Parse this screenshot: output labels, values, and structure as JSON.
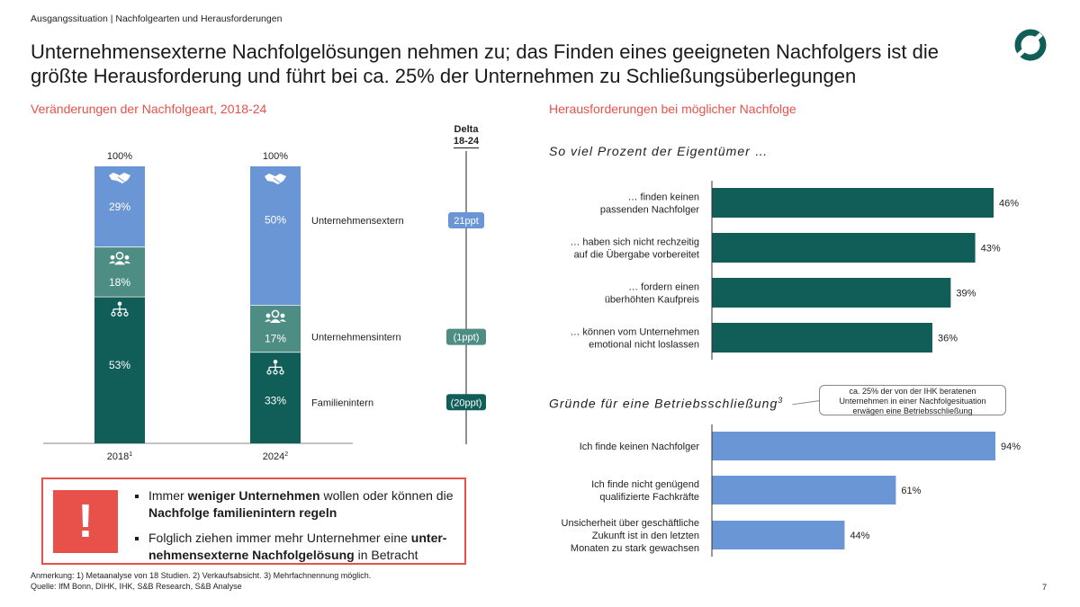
{
  "breadcrumb": "Ausgangssituation | Nachfolgearten und Herausforderungen",
  "title_line1": "Unternehmensexterne Nachfolgelösungen nehmen zu; das Finden eines geeigneten Nachfolgers ist die",
  "title_line2": "größte Herausforderung und führt bei ca. 25% der Unternehmen zu Schließungsüberlegungen",
  "left_section_title": "Veränderungen der Nachfolgeart, 2018-24",
  "right_section_title": "Herausforderungen bei möglicher Nachfolge",
  "delta_header_line1": "Delta",
  "delta_header_line2": "18-24",
  "owners_header": "So viel Prozent der Eigentümer …",
  "closure_header": "Gründe für eine Betriebsschließung",
  "closure_header_sup": "3",
  "callout_line1": "ca. 25% der von der IHK beratenen",
  "callout_line2": "Unternehmen in einer Nachfolgesituation",
  "callout_line3": "erwägen eine Betriebsschließung",
  "warning_symbol": "!",
  "bullet1_parts": [
    "Immer ",
    "weniger Unternehmen",
    " wollen oder können die ",
    "Nachfolge familienintern regeln"
  ],
  "bullet2_parts": [
    "Folglich ziehen immer mehr Unternehmer eine ",
    "unter-nehmensexterne Nachfolgelösung",
    " in Betracht"
  ],
  "note_line1": "Anmerkung: 1) Metaanalyse von 18 Studien. 2) Verkaufsabsicht. 3) Mehrfachnennung möglich.",
  "note_line2": "Quelle: IfM Bonn, DIHK, IHK, S&B Research, S&B Analyse",
  "page_number": "7",
  "colors": {
    "accent_red": "#e8514a",
    "dark_teal": "#115e59",
    "mid_teal": "#4e8d83",
    "light_blue": "#6b96d6"
  },
  "chart_data": [
    {
      "type": "bar",
      "stacked": true,
      "categories": [
        "2018",
        "2024"
      ],
      "category_sups": [
        "1",
        "2"
      ],
      "totals": [
        "100%",
        "100%"
      ],
      "series": [
        {
          "name": "Familienintern",
          "values": [
            53,
            33
          ],
          "color": "#115e59",
          "icon": "org-chart-icon",
          "delta": "(20ppt)"
        },
        {
          "name": "Unternehmensintern",
          "values": [
            18,
            17
          ],
          "color": "#4e8d83",
          "icon": "group-icon",
          "delta": "(1ppt)"
        },
        {
          "name": "Unternehmensextern",
          "values": [
            29,
            50
          ],
          "color": "#6b96d6",
          "icon": "handshake-icon",
          "delta": "21ppt"
        }
      ],
      "unit": "%"
    },
    {
      "type": "bar",
      "orientation": "horizontal",
      "categories": [
        [
          "… finden keinen",
          "passenden Nachfolger"
        ],
        [
          "… haben sich nicht rechzeitig",
          "auf die Übergabe vorbereitet"
        ],
        [
          "… fordern einen",
          "überhöhten Kaufpreis"
        ],
        [
          "… können vom Unternehmen",
          "emotional nicht loslassen"
        ]
      ],
      "values": [
        46,
        43,
        39,
        36
      ],
      "unit": "%",
      "color": "#115e59"
    },
    {
      "type": "bar",
      "orientation": "horizontal",
      "categories": [
        [
          "Ich finde keinen Nachfolger"
        ],
        [
          "Ich finde nicht genügend",
          "qualifizierte Fachkräfte"
        ],
        [
          "Unsicherheit über geschäftliche",
          "Zukunft ist in den letzten",
          "Monaten zu stark gewachsen"
        ]
      ],
      "values": [
        94,
        61,
        44
      ],
      "unit": "%",
      "color": "#6b96d6"
    }
  ]
}
